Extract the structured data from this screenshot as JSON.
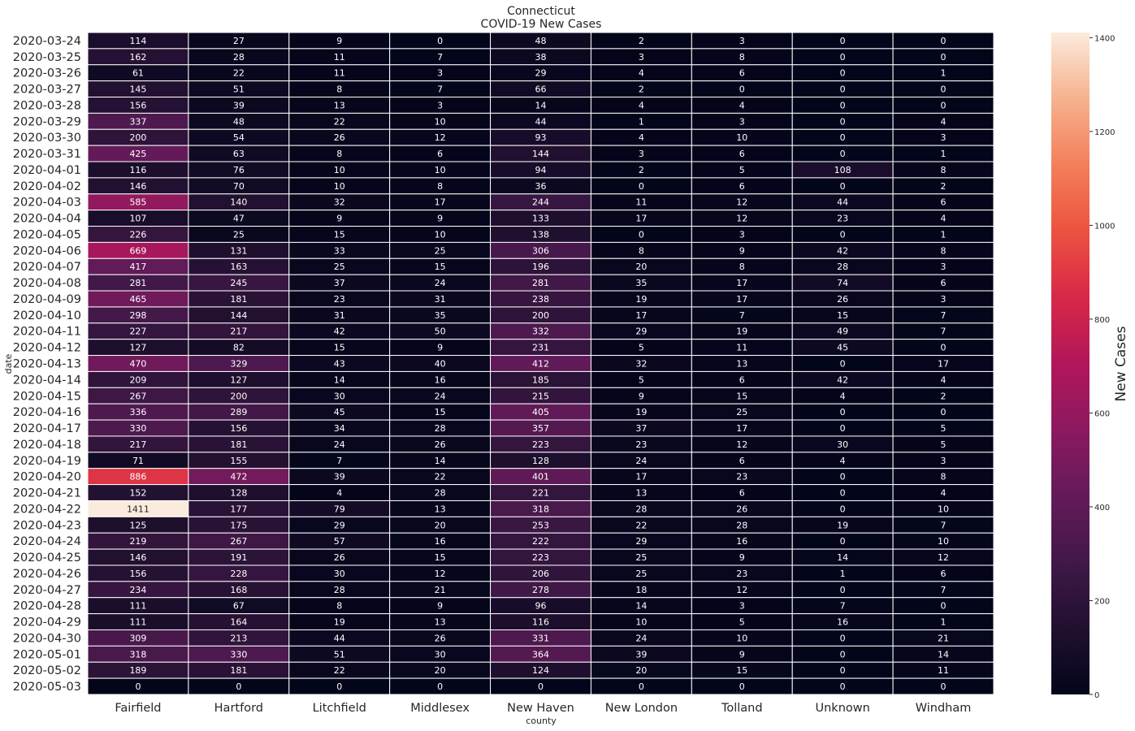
{
  "chart_data": {
    "type": "heatmap",
    "title": "Connecticut",
    "subtitle": "COVID-19 New Cases",
    "xlabel": "county",
    "ylabel": "date",
    "columns": [
      "Fairfield",
      "Hartford",
      "Litchfield",
      "Middlesex",
      "New Haven",
      "New London",
      "Tolland",
      "Unknown",
      "Windham"
    ],
    "rows": [
      "2020-03-24",
      "2020-03-25",
      "2020-03-26",
      "2020-03-27",
      "2020-03-28",
      "2020-03-29",
      "2020-03-30",
      "2020-03-31",
      "2020-04-01",
      "2020-04-02",
      "2020-04-03",
      "2020-04-04",
      "2020-04-05",
      "2020-04-06",
      "2020-04-07",
      "2020-04-08",
      "2020-04-09",
      "2020-04-10",
      "2020-04-11",
      "2020-04-12",
      "2020-04-13",
      "2020-04-14",
      "2020-04-15",
      "2020-04-16",
      "2020-04-17",
      "2020-04-18",
      "2020-04-19",
      "2020-04-20",
      "2020-04-21",
      "2020-04-22",
      "2020-04-23",
      "2020-04-24",
      "2020-04-25",
      "2020-04-26",
      "2020-04-27",
      "2020-04-28",
      "2020-04-29",
      "2020-04-30",
      "2020-05-01",
      "2020-05-02",
      "2020-05-03"
    ],
    "values": [
      [
        114,
        27,
        9,
        0,
        48,
        2,
        3,
        0,
        0
      ],
      [
        162,
        28,
        11,
        7,
        38,
        3,
        8,
        0,
        0
      ],
      [
        61,
        22,
        11,
        3,
        29,
        4,
        6,
        0,
        1
      ],
      [
        145,
        51,
        8,
        7,
        66,
        2,
        0,
        0,
        0
      ],
      [
        156,
        39,
        13,
        3,
        14,
        4,
        4,
        0,
        0
      ],
      [
        337,
        48,
        22,
        10,
        44,
        1,
        3,
        0,
        4
      ],
      [
        200,
        54,
        26,
        12,
        93,
        4,
        10,
        0,
        3
      ],
      [
        425,
        63,
        8,
        6,
        144,
        3,
        6,
        0,
        1
      ],
      [
        116,
        76,
        10,
        10,
        94,
        2,
        5,
        108,
        8
      ],
      [
        146,
        70,
        10,
        8,
        36,
        0,
        6,
        0,
        2
      ],
      [
        585,
        140,
        32,
        17,
        244,
        11,
        12,
        44,
        6
      ],
      [
        107,
        47,
        9,
        9,
        133,
        17,
        12,
        23,
        4
      ],
      [
        226,
        25,
        15,
        10,
        138,
        0,
        3,
        0,
        1
      ],
      [
        669,
        131,
        33,
        25,
        306,
        8,
        9,
        42,
        8
      ],
      [
        417,
        163,
        25,
        15,
        196,
        20,
        8,
        28,
        3
      ],
      [
        281,
        245,
        37,
        24,
        281,
        35,
        17,
        74,
        6
      ],
      [
        465,
        181,
        23,
        31,
        238,
        19,
        17,
        26,
        3
      ],
      [
        298,
        144,
        31,
        35,
        200,
        17,
        7,
        15,
        7
      ],
      [
        227,
        217,
        42,
        50,
        332,
        29,
        19,
        49,
        7
      ],
      [
        127,
        82,
        15,
        9,
        231,
        5,
        11,
        45,
        0
      ],
      [
        470,
        329,
        43,
        40,
        412,
        32,
        13,
        0,
        17
      ],
      [
        209,
        127,
        14,
        16,
        185,
        5,
        6,
        42,
        4
      ],
      [
        267,
        200,
        30,
        24,
        215,
        9,
        15,
        4,
        2
      ],
      [
        336,
        289,
        45,
        15,
        405,
        19,
        25,
        0,
        0
      ],
      [
        330,
        156,
        34,
        28,
        357,
        37,
        17,
        0,
        5
      ],
      [
        217,
        181,
        24,
        26,
        223,
        23,
        12,
        30,
        5
      ],
      [
        71,
        155,
        7,
        14,
        128,
        24,
        6,
        4,
        3
      ],
      [
        886,
        472,
        39,
        22,
        401,
        17,
        23,
        0,
        8
      ],
      [
        152,
        128,
        4,
        28,
        221,
        13,
        6,
        0,
        4
      ],
      [
        1411,
        177,
        79,
        13,
        318,
        28,
        26,
        0,
        10
      ],
      [
        125,
        175,
        29,
        20,
        253,
        22,
        28,
        19,
        7
      ],
      [
        219,
        267,
        57,
        16,
        222,
        29,
        16,
        0,
        10
      ],
      [
        146,
        191,
        26,
        15,
        223,
        25,
        9,
        14,
        12
      ],
      [
        156,
        228,
        30,
        12,
        206,
        25,
        23,
        1,
        6
      ],
      [
        234,
        168,
        28,
        21,
        278,
        18,
        12,
        0,
        7
      ],
      [
        111,
        67,
        8,
        9,
        96,
        14,
        3,
        7,
        0
      ],
      [
        111,
        164,
        19,
        13,
        116,
        10,
        5,
        16,
        1
      ],
      [
        309,
        213,
        44,
        26,
        331,
        24,
        10,
        0,
        21
      ],
      [
        318,
        330,
        51,
        30,
        364,
        39,
        9,
        0,
        14
      ],
      [
        189,
        181,
        22,
        20,
        124,
        20,
        15,
        0,
        11
      ],
      [
        0,
        0,
        0,
        0,
        0,
        0,
        0,
        0,
        0
      ]
    ],
    "colorbar": {
      "label": "New Cases",
      "vmin": 0,
      "vmax": 1411,
      "ticks": [
        0,
        200,
        400,
        600,
        800,
        1000,
        1200,
        1400
      ],
      "colormap": "rocket"
    },
    "grid": "white cell borders"
  }
}
